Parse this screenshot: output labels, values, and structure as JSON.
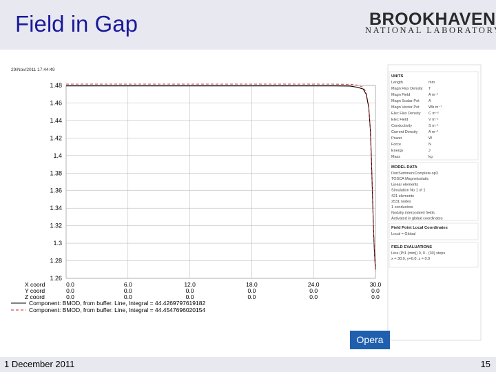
{
  "slide": {
    "title": "Field in Gap",
    "footer_date": "1 December 2011",
    "page_number": "15"
  },
  "logo": {
    "top": "BROOKHAVEN",
    "bottom": "NATIONAL LABORATORY"
  },
  "plot_timestamp": "29/Nov/2011 17:44:49",
  "opera_label": "Opera",
  "chart_data": {
    "type": "line",
    "xlim": [
      0,
      30
    ],
    "ylim": [
      1.26,
      1.48
    ],
    "y_ticks": [
      "1.48",
      "1.46",
      "1.44",
      "1.42",
      "1.4",
      "1.38",
      "1.36",
      "1.34",
      "1.32",
      "1.3",
      "1.28",
      "1.26"
    ],
    "x_ticks": [
      "0.0",
      "6.0",
      "12.0",
      "18.0",
      "24.0",
      "30.0"
    ],
    "coord_rows": [
      {
        "label": "X coord",
        "values": [
          "0.0",
          "6.0",
          "12.0",
          "18.0",
          "24.0",
          "30.0"
        ]
      },
      {
        "label": "Y coord",
        "values": [
          "0.0",
          "0.0",
          "0.0",
          "0.0",
          "0.0",
          "0.0"
        ]
      },
      {
        "label": "Z coord",
        "values": [
          "0.0",
          "0.0",
          "0.0",
          "0.0",
          "0.0",
          "0.0"
        ]
      }
    ],
    "grid": true,
    "series": [
      {
        "name": "Component: BMOD, from buffer. Line, Integral = 44.4269797619182",
        "color": "#000000",
        "style": "solid",
        "x": [
          0,
          2,
          4,
          6,
          9,
          12,
          15,
          18,
          21,
          24,
          26,
          27.5,
          28.2,
          28.8,
          29.1,
          29.35,
          29.5,
          29.6,
          29.7,
          29.8,
          29.9,
          30
        ],
        "y": [
          1.4795,
          1.4795,
          1.4795,
          1.4795,
          1.4795,
          1.4795,
          1.4795,
          1.4795,
          1.4795,
          1.4795,
          1.4795,
          1.4793,
          1.478,
          1.476,
          1.47,
          1.455,
          1.43,
          1.4,
          1.36,
          1.32,
          1.29,
          1.27
        ]
      },
      {
        "name": "Component: BMOD, from buffer. Line, Integral = 44.4547696020154",
        "color": "#cc2222",
        "style": "dashed",
        "x": [
          0,
          2,
          4,
          6,
          9,
          12,
          15,
          18,
          21,
          24,
          26,
          27.5,
          28.2,
          28.8,
          29.1,
          29.35,
          29.5,
          29.6,
          29.7,
          29.8,
          29.9,
          30
        ],
        "y": [
          1.4815,
          1.4815,
          1.4815,
          1.4815,
          1.4815,
          1.4815,
          1.4815,
          1.4815,
          1.4815,
          1.4815,
          1.4815,
          1.4813,
          1.4805,
          1.478,
          1.472,
          1.457,
          1.432,
          1.402,
          1.362,
          1.322,
          1.292,
          1.268
        ]
      }
    ]
  },
  "side_panel": {
    "units": {
      "heading": "UNITS",
      "rows": [
        {
          "k": "Length",
          "v": "mm"
        },
        {
          "k": "Magn Flux Density",
          "v": "T"
        },
        {
          "k": "Magn Field",
          "v": "A m⁻¹"
        },
        {
          "k": "Magn Scalar Pot",
          "v": "A"
        },
        {
          "k": "Magn Vector Pot",
          "v": "Wb m⁻¹"
        },
        {
          "k": "Elec Flux Density",
          "v": "C m⁻²"
        },
        {
          "k": "Elec Field",
          "v": "V m⁻¹"
        },
        {
          "k": "Conductivity",
          "v": "S m⁻¹"
        },
        {
          "k": "Current Density",
          "v": "A m⁻²"
        },
        {
          "k": "Power",
          "v": "W"
        },
        {
          "k": "Force",
          "v": "N"
        },
        {
          "k": "Energy",
          "v": "J"
        },
        {
          "k": "Mass",
          "v": "kg"
        }
      ]
    },
    "model": {
      "heading": "MODEL DATA",
      "lines": [
        "DonSummersComplete.op3",
        "TOSCA Magnetostatic",
        "Linear elements",
        "Simulation No 1 of 1",
        "421 elements",
        "2531 nodes",
        "1 conductors",
        "Nodally interpolated fields",
        "Activated in global coordinates"
      ]
    },
    "field_point": {
      "heading": "Field Point Local Coordinates",
      "lines": [
        "Local = Global"
      ]
    },
    "field_eval": {
      "heading": "FIELD EVALUATIONS",
      "lines": [
        "Line (Pt1 (mm)) 0, 0 - (30) steps",
        "x = 30.0, y=0.0, z = 0.0"
      ]
    }
  }
}
